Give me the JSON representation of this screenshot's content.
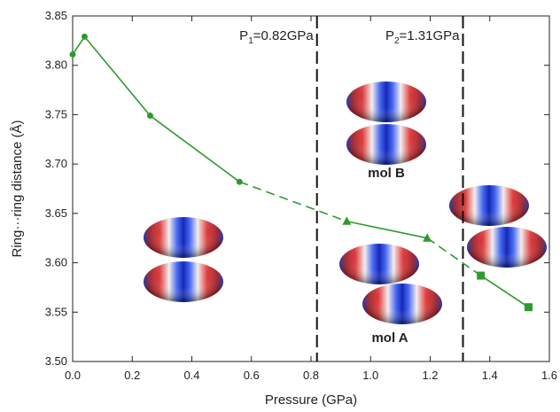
{
  "chart_data": {
    "type": "line",
    "x_label": "Pressure (GPa)",
    "y_label": "Ring···ring distance (Å)",
    "xlim": [
      0,
      1.6
    ],
    "ylim": [
      3.5,
      3.85
    ],
    "xticks": [
      {
        "value": 0,
        "label": "0.0"
      },
      0.2,
      0.4,
      0.6,
      0.8,
      {
        "value": 1,
        "label": "1.0"
      },
      1.2,
      1.4,
      1.6
    ],
    "yticks": [
      {
        "value": 3.5,
        "label": "3.50"
      },
      3.55,
      {
        "value": 3.6,
        "label": "3.60"
      },
      3.65,
      {
        "value": 3.7,
        "label": "3.70"
      },
      3.75,
      {
        "value": 3.8,
        "label": "3.80"
      },
      3.85
    ],
    "series": [
      {
        "color": "#2e9a2e",
        "marker": "circle",
        "x": [
          0.0,
          0.04,
          0.26,
          0.56
        ],
        "values": [
          3.811,
          3.829,
          3.749,
          3.682
        ]
      },
      {
        "color": "#2e9a2e",
        "marker": "triangle",
        "x": [
          0.92,
          1.19
        ],
        "values": [
          3.642,
          3.625
        ]
      },
      {
        "color": "#2e9a2e",
        "marker": "square",
        "x": [
          1.37,
          1.53
        ],
        "values": [
          3.587,
          3.555
        ]
      }
    ],
    "transitions": [
      {
        "x": 0.82,
        "prefix": "P",
        "subscript": "1",
        "suffix": "=0.82GPa"
      },
      {
        "x": 1.31,
        "prefix": "P",
        "subscript": "2",
        "suffix": "=1.31GPa"
      }
    ],
    "molecule_labels": [
      "mol B",
      "mol A"
    ]
  }
}
